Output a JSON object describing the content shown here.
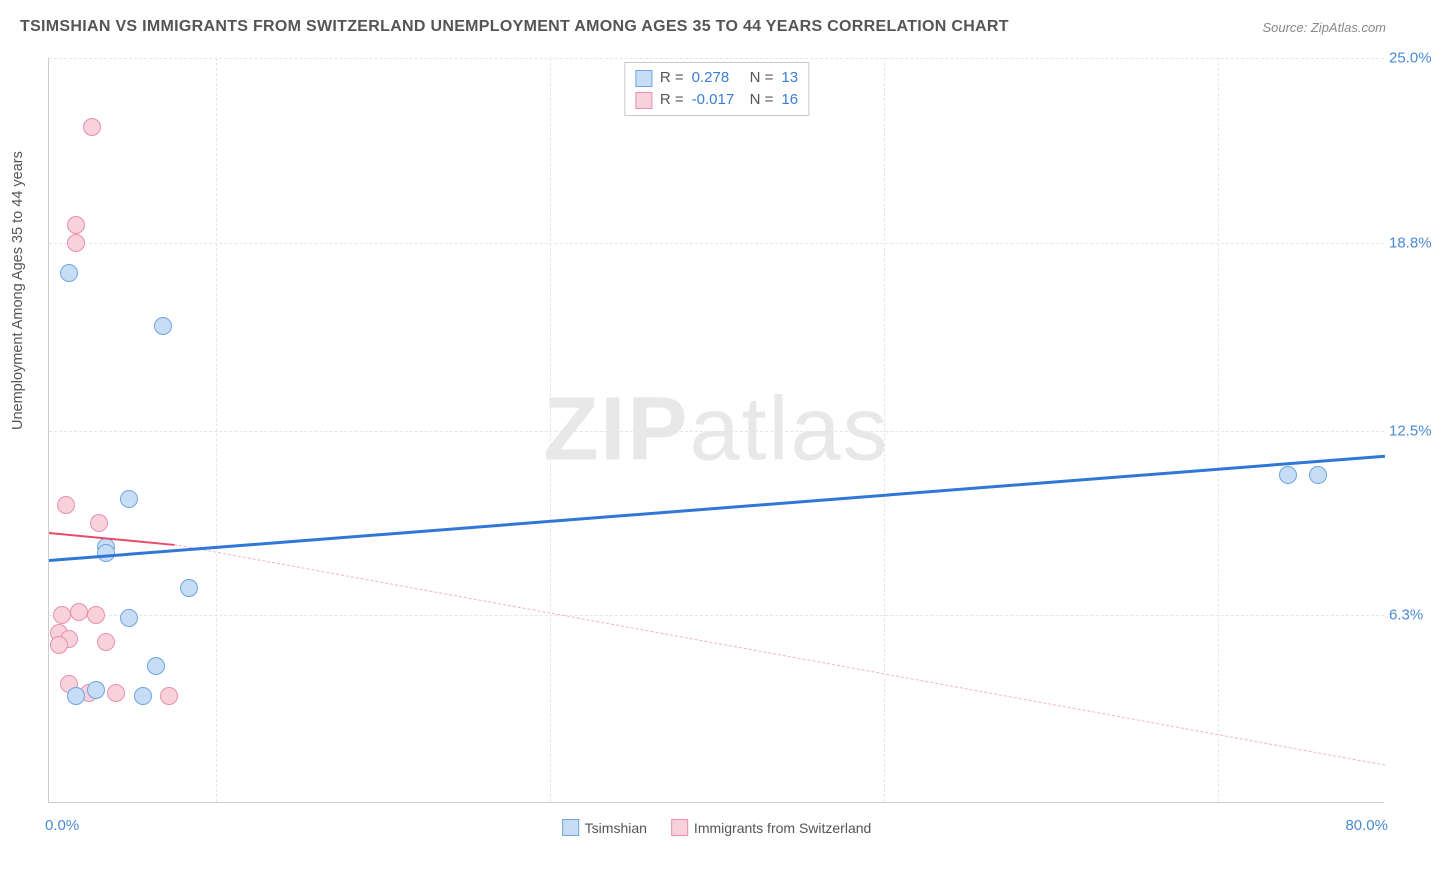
{
  "title": "TSIMSHIAN VS IMMIGRANTS FROM SWITZERLAND UNEMPLOYMENT AMONG AGES 35 TO 44 YEARS CORRELATION CHART",
  "source": "Source: ZipAtlas.com",
  "watermark_bold": "ZIP",
  "watermark_light": "atlas",
  "yaxis_label": "Unemployment Among Ages 35 to 44 years",
  "chart": {
    "type": "scatter",
    "xlim": [
      0,
      80
    ],
    "ylim": [
      0,
      25
    ],
    "background_color": "#ffffff",
    "grid_color": "#e6e6e6",
    "axis_color": "#cccccc",
    "tick_label_color": "#4a8ad4",
    "tick_fontsize": 15,
    "label_fontsize": 14.5,
    "label_color": "#555555",
    "point_radius": 9,
    "point_border_width": 1.6,
    "y_gridlines": [
      6.3,
      12.5,
      18.8,
      25.0
    ],
    "y_tick_labels": [
      "6.3%",
      "12.5%",
      "18.8%",
      "25.0%"
    ],
    "x_gridlines": [
      10,
      30,
      50,
      70
    ],
    "x_tick_labels": {
      "left": "0.0%",
      "right": "80.0%"
    }
  },
  "series": {
    "tsimshian": {
      "label": "Tsimshian",
      "fill": "#c6ddf5",
      "stroke": "#6fa5df",
      "r_value": "0.278",
      "n_value": "13",
      "trend_color": "#2f78d6",
      "trend_width": 3.5,
      "trend": {
        "x1": 0,
        "y1": 8.2,
        "x2": 80,
        "y2": 11.7
      },
      "points": [
        {
          "x": 1.2,
          "y": 17.8
        },
        {
          "x": 6.8,
          "y": 16.0
        },
        {
          "x": 4.8,
          "y": 10.2
        },
        {
          "x": 3.4,
          "y": 8.6
        },
        {
          "x": 3.4,
          "y": 8.4
        },
        {
          "x": 8.4,
          "y": 7.2
        },
        {
          "x": 4.8,
          "y": 6.2
        },
        {
          "x": 6.4,
          "y": 4.6
        },
        {
          "x": 2.8,
          "y": 3.8
        },
        {
          "x": 5.6,
          "y": 3.6
        },
        {
          "x": 1.6,
          "y": 3.6
        },
        {
          "x": 74.2,
          "y": 11.0
        },
        {
          "x": 76.0,
          "y": 11.0
        }
      ]
    },
    "switzerland": {
      "label": "Immigrants from Switzerland",
      "fill": "#f8d1dc",
      "stroke": "#e891aa",
      "r_value": "-0.017",
      "n_value": "16",
      "trend_solid_color": "#e84b6a",
      "trend_dash_color": "#f3b3c2",
      "trend_solid": {
        "x1": 0,
        "y1": 9.1,
        "x2": 7.5,
        "y2": 8.7
      },
      "trend_dash": {
        "x1": 7.5,
        "y1": 8.7,
        "x2": 80,
        "y2": 1.3
      },
      "points": [
        {
          "x": 2.6,
          "y": 22.7
        },
        {
          "x": 1.6,
          "y": 19.4
        },
        {
          "x": 1.6,
          "y": 18.8
        },
        {
          "x": 1.0,
          "y": 10.0
        },
        {
          "x": 3.0,
          "y": 9.4
        },
        {
          "x": 0.8,
          "y": 6.3
        },
        {
          "x": 1.8,
          "y": 6.4
        },
        {
          "x": 2.8,
          "y": 6.3
        },
        {
          "x": 0.6,
          "y": 5.7
        },
        {
          "x": 1.2,
          "y": 5.5
        },
        {
          "x": 0.6,
          "y": 5.3
        },
        {
          "x": 3.4,
          "y": 5.4
        },
        {
          "x": 1.2,
          "y": 4.0
        },
        {
          "x": 2.4,
          "y": 3.7
        },
        {
          "x": 4.0,
          "y": 3.7
        },
        {
          "x": 7.2,
          "y": 3.6
        }
      ]
    }
  },
  "legend_top": {
    "r_label": "R  =",
    "n_label": "N  ="
  }
}
